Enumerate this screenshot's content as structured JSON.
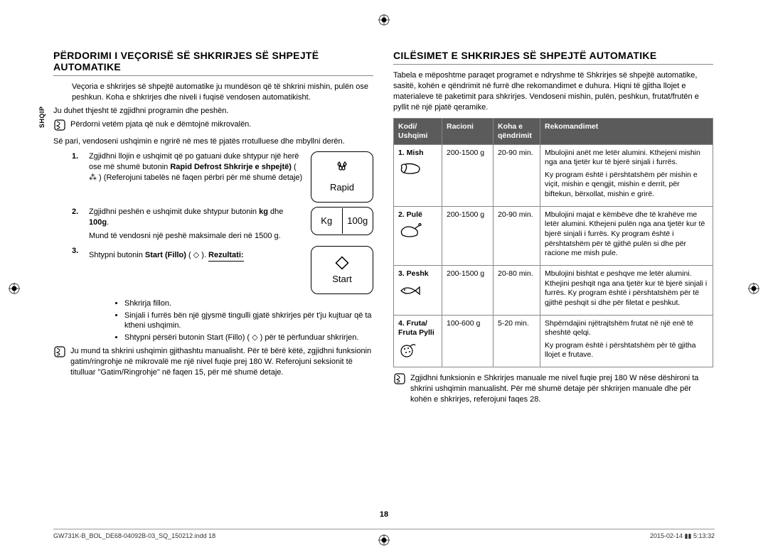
{
  "sideLabel": "SHQIP",
  "pageNumber": "18",
  "footerLeft": "GW731K-B_BOL_DE68-04092B-03_SQ_150212.indd   18",
  "footerRight": "2015-02-14   ▮▮ 5:13:32",
  "left": {
    "heading": "PËRDORIMI I VEÇORISË SË SHKRIRJES SË SHPEJTË AUTOMATIKE",
    "p1": "Veçoria e shkrirjes së shpejtë automatike ju mundëson që të shkrini mishin, pulën ose peshkun. Koha e shkrirjes dhe niveli i fuqisë vendosen automatikisht.",
    "p2": "Ju duhet thjesht të zgjidhni programin dhe peshën.",
    "note1": "Përdorni vetëm pjata që nuk e dëmtojnë mikrovalën.",
    "p3": "Së pari, vendoseni ushqimin e ngrirë në mes të pjatës rrotulluese dhe mbyllni derën.",
    "step1_html": "Zgjidhni llojin e ushqimit që po gatuani duke shtypur një herë ose më shumë butonin <b>Rapid Defrost Shkrirje e shpejtë)</b> ( <span data-name='inline-droplets-icon'>⁂</span> ) (Referojuni tabelës në faqen përbri për më shumë detaje)",
    "step2_html": "Zgjidhni peshën e ushqimit duke shtypur butonin <b>kg</b> dhe <b>100g</b>.",
    "step2_sub": "Mund të vendosni një peshë maksimale deri në 1500 g.",
    "step3_html": "Shtypni butonin <b>Start (Fillo)</b> ( <span data-name='inline-diamond-icon'>◇</span> ).",
    "resultLabel": "Rezultati:",
    "bullets": [
      "Shkrirja fillon.",
      "Sinjali i furrës bën një gjysmë tingulli gjatë shkrirjes për t'ju kujtuar që ta ktheni ushqimin.",
      "Shtypni përsëri butonin Start (Fillo) ( ◇ ) për të përfunduar shkrirjen."
    ],
    "note2": "Ju mund ta shkrini ushqimin gjithashtu manualisht. Për të bërë këtë, zgjidhni funksionin gatim/ringrohje në mikrovalë me një nivel fuqie prej 180 W. Referojuni seksionit të titulluar \"Gatim/Ringrohje\" në faqen 15, për më shumë detaje.",
    "btnRapid": "Rapid",
    "btnKg": "Kg",
    "btn100g": "100g",
    "btnStart": "Start"
  },
  "right": {
    "heading": "CILËSIMET E SHKRIRJES SË SHPEJTË AUTOMATIKE",
    "intro": "Tabela e mëposhtme paraqet programet e ndryshme të Shkrirjes së shpejtë automatike, sasitë, kohën e qëndrimit në furrë dhe rekomandimet e duhura. Hiqni të gjitha llojet e materialeve të paketimit para shkrirjes. Vendoseni mishin, pulën, peshkun, frutat/frutën e pyllit në një pjatë qeramike.",
    "headers": {
      "code": "Kodi/\nUshqimi",
      "serving": "Racioni",
      "time": "Koha e\nqëndrimit",
      "rec": "Rekomandimet"
    },
    "rows": [
      {
        "code": "1. Mish",
        "icon": "meat",
        "serving": "200-1500 g",
        "time": "20-90 min.",
        "rec1": "Mbulojini anët me letër alumini. Kthejeni mishin nga ana tjetër kur të bjerë sinjali i furrës.",
        "rec2": "Ky program është i përshtatshëm për mishin e viçit, mishin e qengjit, mishin e derrit, për biftekun, bërxollat, mishin e grirë."
      },
      {
        "code": "2. Pulë",
        "icon": "chicken",
        "serving": "200-1500 g",
        "time": "20-90 min.",
        "rec1": "Mbulojini majat e këmbëve dhe të krahëve me letër alumini. Kthejeni pulën nga ana tjetër kur të bjerë sinjali i furrës. Ky program është i përshtatshëm për të gjithë pulën si dhe për racione me mish pule.",
        "rec2": ""
      },
      {
        "code": "3. Peshk",
        "icon": "fish",
        "serving": "200-1500 g",
        "time": "20-80 min.",
        "rec1": "Mbulojini bishtat e peshqve me letër alumini. Kthejini peshqit nga ana tjetër kur të bjerë sinjali i furrës. Ky program është i përshtatshëm për të gjithë peshqit si dhe për filetat e peshkut.",
        "rec2": ""
      },
      {
        "code": "4. Fruta/\nFruta Pylli",
        "icon": "berries",
        "serving": "100-600 g",
        "time": "5-20 min.",
        "rec1": "Shpërndajini njëtrajtshëm frutat në një enë të sheshtë qelqi.",
        "rec2": "Ky program është i përshtatshëm për të gjitha llojet e frutave."
      }
    ],
    "note": "Zgjidhni funksionin e Shkrirjes manuale me nivel fuqie prej 180 W nëse dëshironi ta shkrini ushqimin manualisht. Për më shumë detaje për shkrirjen manuale dhe për kohën e shkrirjes, referojuni faqes 28."
  }
}
